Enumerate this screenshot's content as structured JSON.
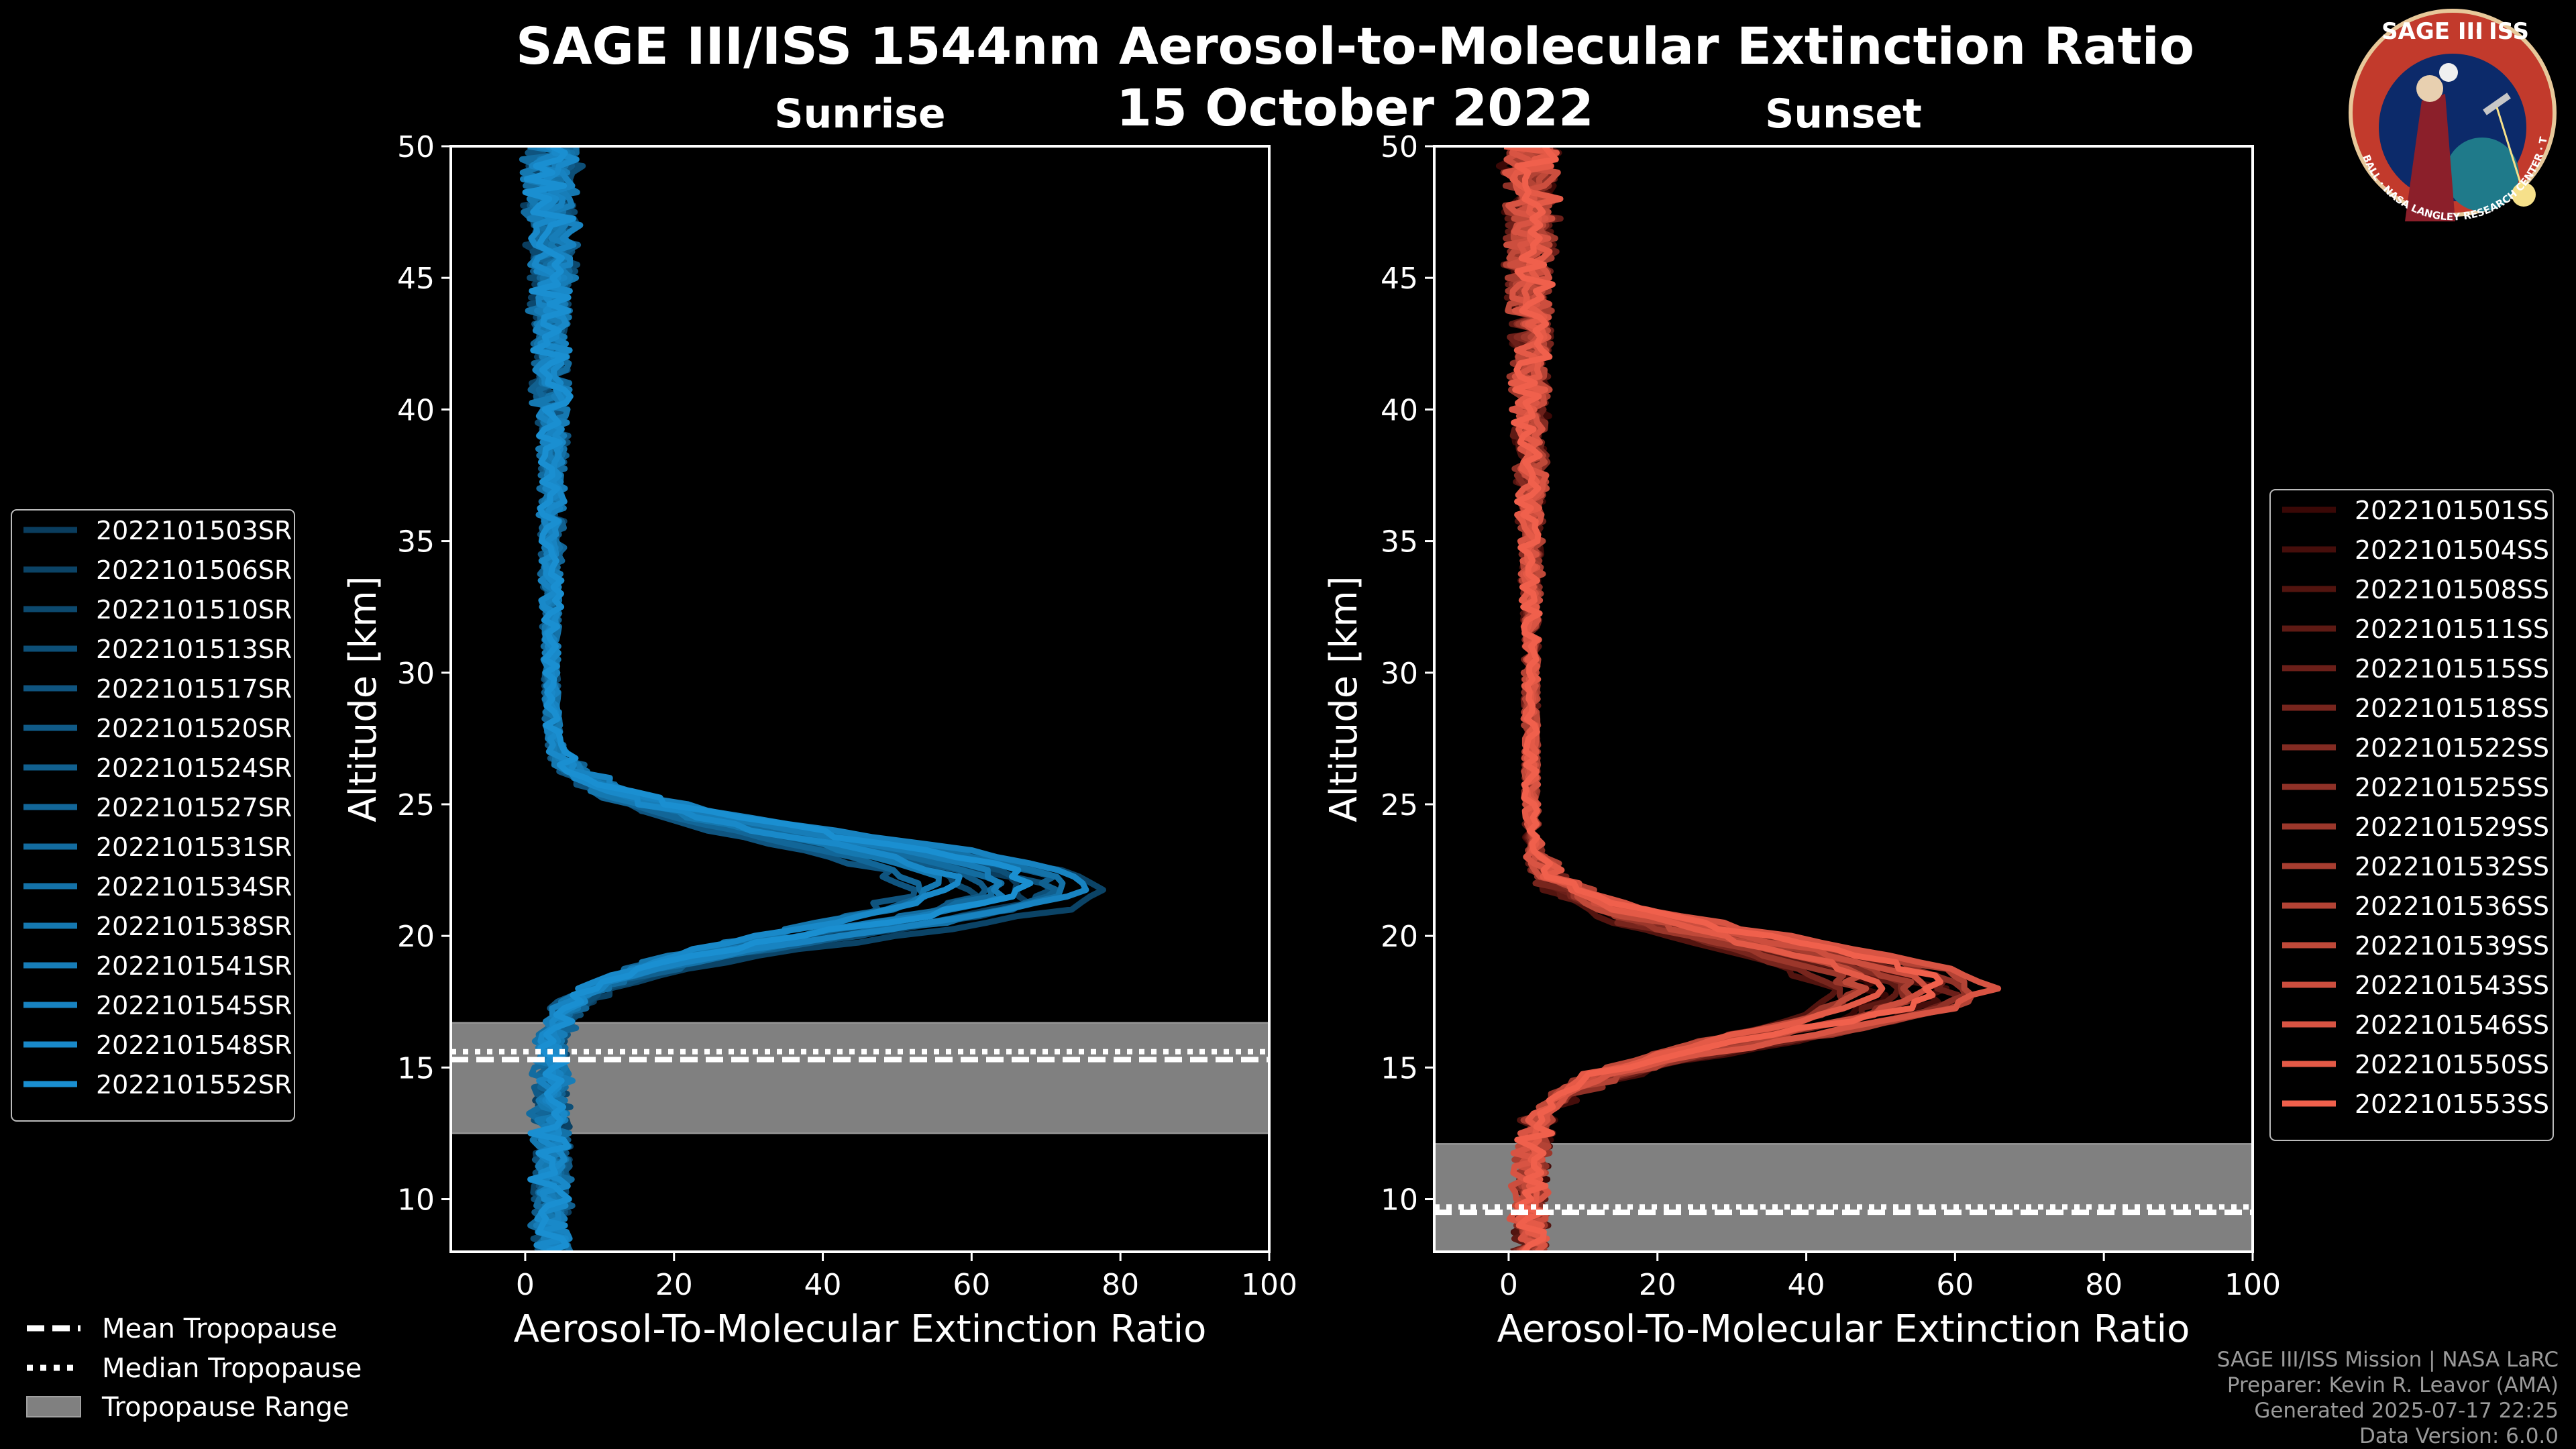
{
  "chart_data": {
    "type": "line",
    "title_line1": "SAGE III/ISS 1544nm Aerosol-to-Molecular Extinction Ratio",
    "title_line2": "15 October 2022",
    "xlim": [
      -10,
      100
    ],
    "ylim": [
      8,
      50
    ],
    "xticks": [
      "0",
      "20",
      "40",
      "60",
      "80",
      "100"
    ],
    "xtick_values": [
      0,
      20,
      40,
      60,
      80,
      100
    ],
    "yticks": [
      "10",
      "15",
      "20",
      "25",
      "30",
      "35",
      "40",
      "45",
      "50"
    ],
    "ytick_values": [
      10,
      15,
      20,
      25,
      30,
      35,
      40,
      45,
      50
    ],
    "xlabel": "Aerosol-To-Molecular Extinction Ratio",
    "ylabel": "Altitude [km]",
    "panels": [
      {
        "title": "Sunrise",
        "color_start": "#0a3d5e",
        "color_end": "#1a8fd1",
        "profile_shape": {
          "baseline": 3.5,
          "peak_altitude": 21.5,
          "peak_value": 62,
          "peak_width": 1.8
        },
        "tropopause": {
          "min": 12.5,
          "max": 16.7,
          "mean": 15.3,
          "median": 15.6
        },
        "series": [
          {
            "name": "2022101503SR"
          },
          {
            "name": "2022101506SR"
          },
          {
            "name": "2022101510SR"
          },
          {
            "name": "2022101513SR"
          },
          {
            "name": "2022101517SR"
          },
          {
            "name": "2022101520SR"
          },
          {
            "name": "2022101524SR"
          },
          {
            "name": "2022101527SR"
          },
          {
            "name": "2022101531SR"
          },
          {
            "name": "2022101534SR"
          },
          {
            "name": "2022101538SR"
          },
          {
            "name": "2022101541SR"
          },
          {
            "name": "2022101545SR"
          },
          {
            "name": "2022101548SR"
          },
          {
            "name": "2022101552SR"
          }
        ]
      },
      {
        "title": "Sunset",
        "color_start": "#3a0806",
        "color_end": "#f0604c",
        "profile_shape": {
          "baseline": 3.0,
          "peak_altitude": 18.5,
          "peak_value": 52,
          "peak_width": 1.8
        },
        "tropopause": {
          "min": 8.0,
          "max": 12.1,
          "mean": 9.5,
          "median": 9.7
        },
        "series": [
          {
            "name": "2022101501SS"
          },
          {
            "name": "2022101504SS"
          },
          {
            "name": "2022101508SS"
          },
          {
            "name": "2022101511SS"
          },
          {
            "name": "2022101515SS"
          },
          {
            "name": "2022101518SS"
          },
          {
            "name": "2022101522SS"
          },
          {
            "name": "2022101525SS"
          },
          {
            "name": "2022101529SS"
          },
          {
            "name": "2022101532SS"
          },
          {
            "name": "2022101536SS"
          },
          {
            "name": "2022101539SS"
          },
          {
            "name": "2022101543SS"
          },
          {
            "name": "2022101546SS"
          },
          {
            "name": "2022101550SS"
          },
          {
            "name": "2022101553SS"
          }
        ]
      }
    ],
    "tropopause_legend": [
      "Mean Tropopause",
      "Median Tropopause",
      "Tropopause Range"
    ],
    "tropopause_range_color": "#808080"
  },
  "logo": {
    "line1": "SAGE III",
    "line2": "ISS",
    "ring_text": "BALL · NASA LANGLEY RESEARCH CENTER · TAS-I · ESA"
  },
  "credits": [
    "SAGE III/ISS Mission | NASA LaRC",
    "Preparer: Kevin R. Leavor (AMA)",
    "Generated 2025-07-17 22:25",
    "Data Version: 6.0.0"
  ]
}
